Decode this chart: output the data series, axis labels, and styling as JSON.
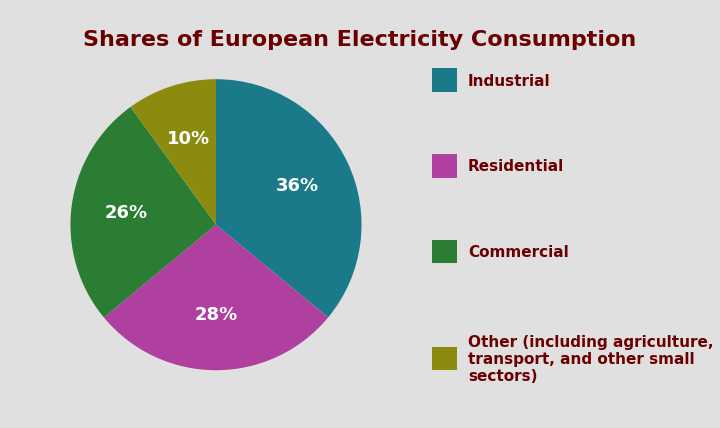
{
  "title": "Shares of European Electricity Consumption",
  "title_color": "#6B0000",
  "title_fontsize": 16,
  "title_fontweight": "bold",
  "slices": [
    36,
    28,
    26,
    10
  ],
  "labels": [
    "Industrial",
    "Residential",
    "Commercial",
    "Other (including agriculture,\ntransport, and other small\nsectors)"
  ],
  "pct_labels": [
    "36%",
    "28%",
    "26%",
    "10%"
  ],
  "colors": [
    "#1A7A8A",
    "#B040A0",
    "#2A7D32",
    "#8B8B10"
  ],
  "startangle": 90,
  "background_color": "#E0E0E0",
  "legend_text_color": "#6B0000",
  "legend_fontsize": 11,
  "pct_fontsize": 13,
  "pct_color": "white"
}
